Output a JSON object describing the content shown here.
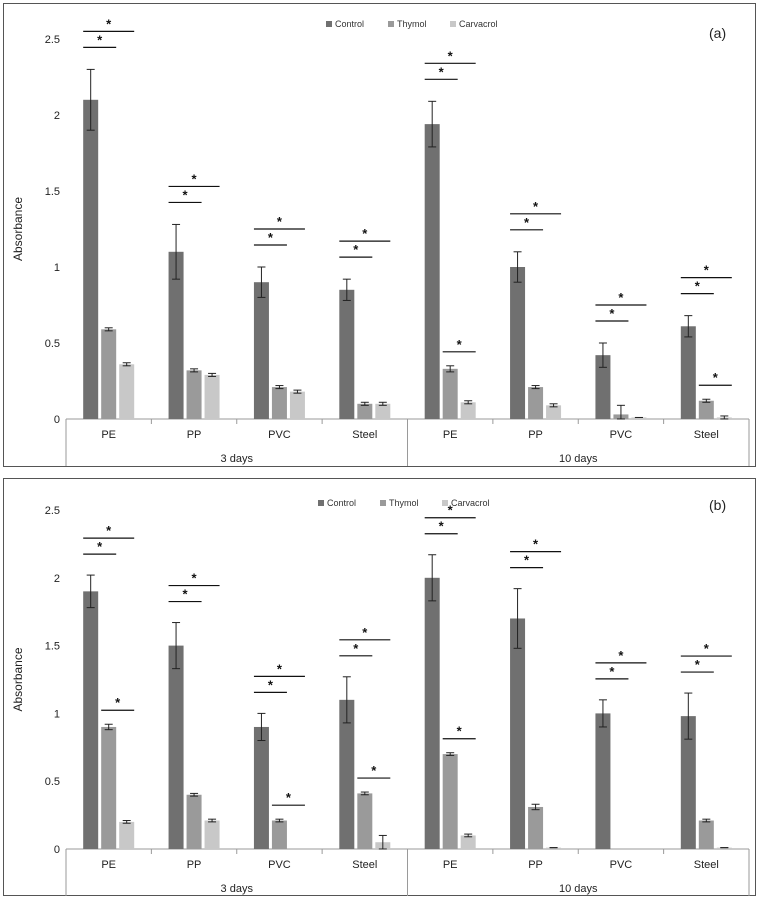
{
  "legend": [
    "Control",
    "Thymol",
    "Carvacrol"
  ],
  "colors": {
    "control": "#707070",
    "thymol": "#9a9a9a",
    "carvacrol": "#c8c8c8",
    "axis": "#9a9a9a"
  },
  "chart_data": [
    {
      "type": "bar",
      "panel_label": "(a)",
      "ylabel": "Absorbance",
      "ylim": [
        0,
        2.5
      ],
      "yticks": [
        "0",
        "0.5",
        "1",
        "1.5",
        "2",
        "2.5"
      ],
      "categories": [
        "PE",
        "PP",
        "PVC",
        "Steel",
        "PE",
        "PP",
        "PVC",
        "Steel"
      ],
      "groups": [
        "3 days",
        "10 days"
      ],
      "series": [
        {
          "name": "Control",
          "values": [
            2.1,
            1.1,
            0.9,
            0.85,
            1.94,
            1.0,
            0.42,
            0.61
          ],
          "errors": [
            0.2,
            0.18,
            0.1,
            0.07,
            0.15,
            0.1,
            0.08,
            0.07
          ]
        },
        {
          "name": "Thymol",
          "values": [
            0.59,
            0.32,
            0.21,
            0.1,
            0.33,
            0.21,
            0.03,
            0.12
          ],
          "errors": [
            0.01,
            0.01,
            0.01,
            0.01,
            0.02,
            0.01,
            0.06,
            0.01
          ]
        },
        {
          "name": "Carvacrol",
          "values": [
            0.36,
            0.29,
            0.18,
            0.1,
            0.11,
            0.09,
            0.01,
            0.01
          ],
          "errors": [
            0.01,
            0.01,
            0.01,
            0.01,
            0.01,
            0.01,
            0.0,
            0.01
          ]
        }
      ],
      "significance": [
        {
          "category": 0,
          "from": "Control",
          "to": "Thymol",
          "label": "*"
        },
        {
          "category": 0,
          "from": "Control",
          "to": "Carvacrol",
          "label": "*"
        },
        {
          "category": 1,
          "from": "Control",
          "to": "Thymol",
          "label": "*"
        },
        {
          "category": 1,
          "from": "Control",
          "to": "Carvacrol",
          "label": "*"
        },
        {
          "category": 2,
          "from": "Control",
          "to": "Thymol",
          "label": "*"
        },
        {
          "category": 2,
          "from": "Control",
          "to": "Carvacrol",
          "label": "*"
        },
        {
          "category": 3,
          "from": "Control",
          "to": "Thymol",
          "label": "*"
        },
        {
          "category": 3,
          "from": "Control",
          "to": "Carvacrol",
          "label": "*"
        },
        {
          "category": 4,
          "from": "Control",
          "to": "Thymol",
          "label": "*"
        },
        {
          "category": 4,
          "from": "Control",
          "to": "Carvacrol",
          "label": "*"
        },
        {
          "category": 4,
          "from": "Thymol",
          "to": "Carvacrol",
          "label": "*"
        },
        {
          "category": 5,
          "from": "Control",
          "to": "Thymol",
          "label": "*"
        },
        {
          "category": 5,
          "from": "Control",
          "to": "Carvacrol",
          "label": "*"
        },
        {
          "category": 6,
          "from": "Control",
          "to": "Thymol",
          "label": "*"
        },
        {
          "category": 6,
          "from": "Control",
          "to": "Carvacrol",
          "label": "*"
        },
        {
          "category": 7,
          "from": "Control",
          "to": "Thymol",
          "label": "*"
        },
        {
          "category": 7,
          "from": "Control",
          "to": "Carvacrol",
          "label": "*"
        },
        {
          "category": 7,
          "from": "Thymol",
          "to": "Carvacrol",
          "label": "*"
        }
      ]
    },
    {
      "type": "bar",
      "panel_label": "(b)",
      "ylabel": "Absorbance",
      "ylim": [
        0,
        2.5
      ],
      "yticks": [
        "0",
        "0.5",
        "1",
        "1.5",
        "2",
        "2.5"
      ],
      "categories": [
        "PE",
        "PP",
        "PVC",
        "Steel",
        "PE",
        "PP",
        "PVC",
        "Steel"
      ],
      "groups": [
        "3 days",
        "10 days"
      ],
      "series": [
        {
          "name": "Control",
          "values": [
            1.9,
            1.5,
            0.9,
            1.1,
            2.0,
            1.7,
            1.0,
            0.98
          ],
          "errors": [
            0.12,
            0.17,
            0.1,
            0.17,
            0.17,
            0.22,
            0.1,
            0.17
          ]
        },
        {
          "name": "Thymol",
          "values": [
            0.9,
            0.4,
            0.21,
            0.41,
            0.7,
            0.31,
            0.0,
            0.21
          ],
          "errors": [
            0.02,
            0.01,
            0.01,
            0.01,
            0.01,
            0.02,
            0.0,
            0.01
          ]
        },
        {
          "name": "Carvacrol",
          "values": [
            0.2,
            0.21,
            0.0,
            0.05,
            0.1,
            0.01,
            0.0,
            0.01
          ],
          "errors": [
            0.01,
            0.01,
            0.0,
            0.05,
            0.01,
            0.0,
            0.0,
            0.0
          ]
        }
      ],
      "significance": [
        {
          "category": 0,
          "from": "Control",
          "to": "Thymol",
          "label": "*"
        },
        {
          "category": 0,
          "from": "Control",
          "to": "Carvacrol",
          "label": "*"
        },
        {
          "category": 0,
          "from": "Thymol",
          "to": "Carvacrol",
          "label": "*"
        },
        {
          "category": 1,
          "from": "Control",
          "to": "Thymol",
          "label": "*"
        },
        {
          "category": 1,
          "from": "Control",
          "to": "Carvacrol",
          "label": "*"
        },
        {
          "category": 2,
          "from": "Control",
          "to": "Thymol",
          "label": "*"
        },
        {
          "category": 2,
          "from": "Control",
          "to": "Carvacrol",
          "label": "*"
        },
        {
          "category": 2,
          "from": "Thymol",
          "to": "Carvacrol",
          "label": "*"
        },
        {
          "category": 3,
          "from": "Control",
          "to": "Thymol",
          "label": "*"
        },
        {
          "category": 3,
          "from": "Control",
          "to": "Carvacrol",
          "label": "*"
        },
        {
          "category": 3,
          "from": "Thymol",
          "to": "Carvacrol",
          "label": "*"
        },
        {
          "category": 4,
          "from": "Control",
          "to": "Thymol",
          "label": "*"
        },
        {
          "category": 4,
          "from": "Control",
          "to": "Carvacrol",
          "label": "*"
        },
        {
          "category": 4,
          "from": "Thymol",
          "to": "Carvacrol",
          "label": "*"
        },
        {
          "category": 5,
          "from": "Control",
          "to": "Thymol",
          "label": "*"
        },
        {
          "category": 5,
          "from": "Control",
          "to": "Carvacrol",
          "label": "*"
        },
        {
          "category": 6,
          "from": "Control",
          "to": "Thymol",
          "label": "*"
        },
        {
          "category": 6,
          "from": "Control",
          "to": "Carvacrol",
          "label": "*"
        },
        {
          "category": 7,
          "from": "Control",
          "to": "Thymol",
          "label": "*"
        },
        {
          "category": 7,
          "from": "Control",
          "to": "Carvacrol",
          "label": "*"
        }
      ]
    }
  ]
}
